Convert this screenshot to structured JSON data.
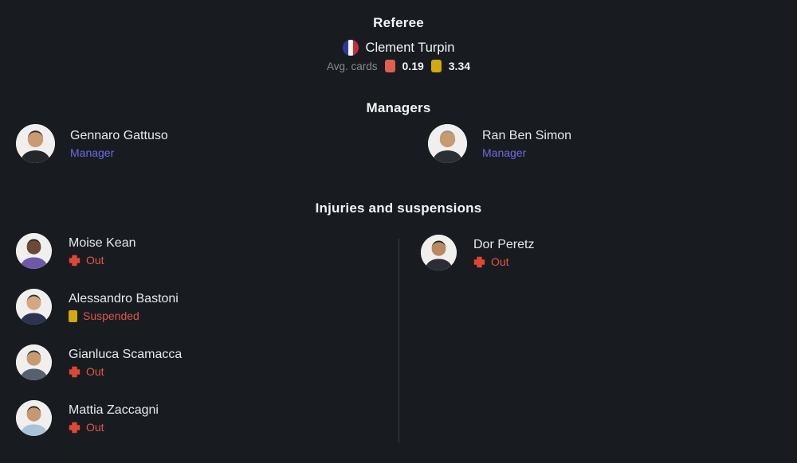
{
  "colors": {
    "bg": "#181c21",
    "heading": "#f3f4f6",
    "text": "#e7e9ea",
    "muted": "#848b93",
    "accent_purple": "#6e6ae0",
    "status_red": "#dd5843",
    "card_red": "#e0604b",
    "card_yellow": "#d2a90e",
    "divider": "#3a3e43",
    "flag_blue": "#293a95",
    "flag_white": "#f2f3f5",
    "flag_red": "#cd2a3b"
  },
  "referee": {
    "heading": "Referee",
    "name": "Clement Turpin",
    "flag_icon": "france-flag-icon",
    "avg_cards_label": "Avg. cards",
    "red_value": "0.19",
    "yellow_value": "3.34"
  },
  "managers": {
    "heading": "Managers",
    "items": [
      {
        "name": "Gennaro Gattuso",
        "role": "Manager",
        "avatar": {
          "skin": "#c99b72",
          "hair": "#3a332e",
          "shirt": "#23262b"
        }
      },
      {
        "name": "Ran Ben Simon",
        "role": "Manager",
        "avatar": {
          "skin": "#c9996f",
          "hair": "#98928a",
          "shirt": "#2b2e33"
        }
      }
    ]
  },
  "injuries": {
    "heading": "Injuries and suspensions",
    "home": [
      {
        "name": "Moise Kean",
        "status": "Out",
        "status_type": "out",
        "avatar": {
          "skin": "#6b4a35",
          "hair": "#2b2119",
          "shirt": "#6d59a8"
        }
      },
      {
        "name": "Alessandro Bastoni",
        "status": "Suspended",
        "status_type": "suspended",
        "avatar": {
          "skin": "#d5a77e",
          "hair": "#2e2a26",
          "shirt": "#2c3350"
        }
      },
      {
        "name": "Gianluca Scamacca",
        "status": "Out",
        "status_type": "out",
        "avatar": {
          "skin": "#c89a72",
          "hair": "#2b2623",
          "shirt": "#55616e"
        }
      },
      {
        "name": "Mattia Zaccagni",
        "status": "Out",
        "status_type": "out",
        "avatar": {
          "skin": "#c69872",
          "hair": "#26221f",
          "shirt": "#a9c3d8"
        }
      }
    ],
    "away": [
      {
        "name": "Dor Peretz",
        "status": "Out",
        "status_type": "out",
        "avatar": {
          "skin": "#b98a5e",
          "hair": "#241f1b",
          "shirt": "#2a2d33"
        }
      }
    ]
  }
}
